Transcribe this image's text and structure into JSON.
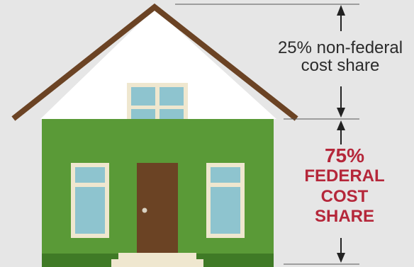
{
  "non_federal": {
    "line1": "25% non-federal",
    "line2": "cost share"
  },
  "federal": {
    "percent": "75%",
    "line1": "FEDERAL",
    "line2": "COST",
    "line3": "SHARE"
  },
  "colors": {
    "background": "#e6e6e6",
    "roof": "#6b4324",
    "gable": "#ffffff",
    "wall": "#5a9a37",
    "wall_base": "#3f7a26",
    "window_frame": "#efe7cf",
    "window_glass": "#8ec4cf",
    "door": "#6b4324",
    "federal_text": "#b5273a",
    "dimension_line": "#222222"
  }
}
